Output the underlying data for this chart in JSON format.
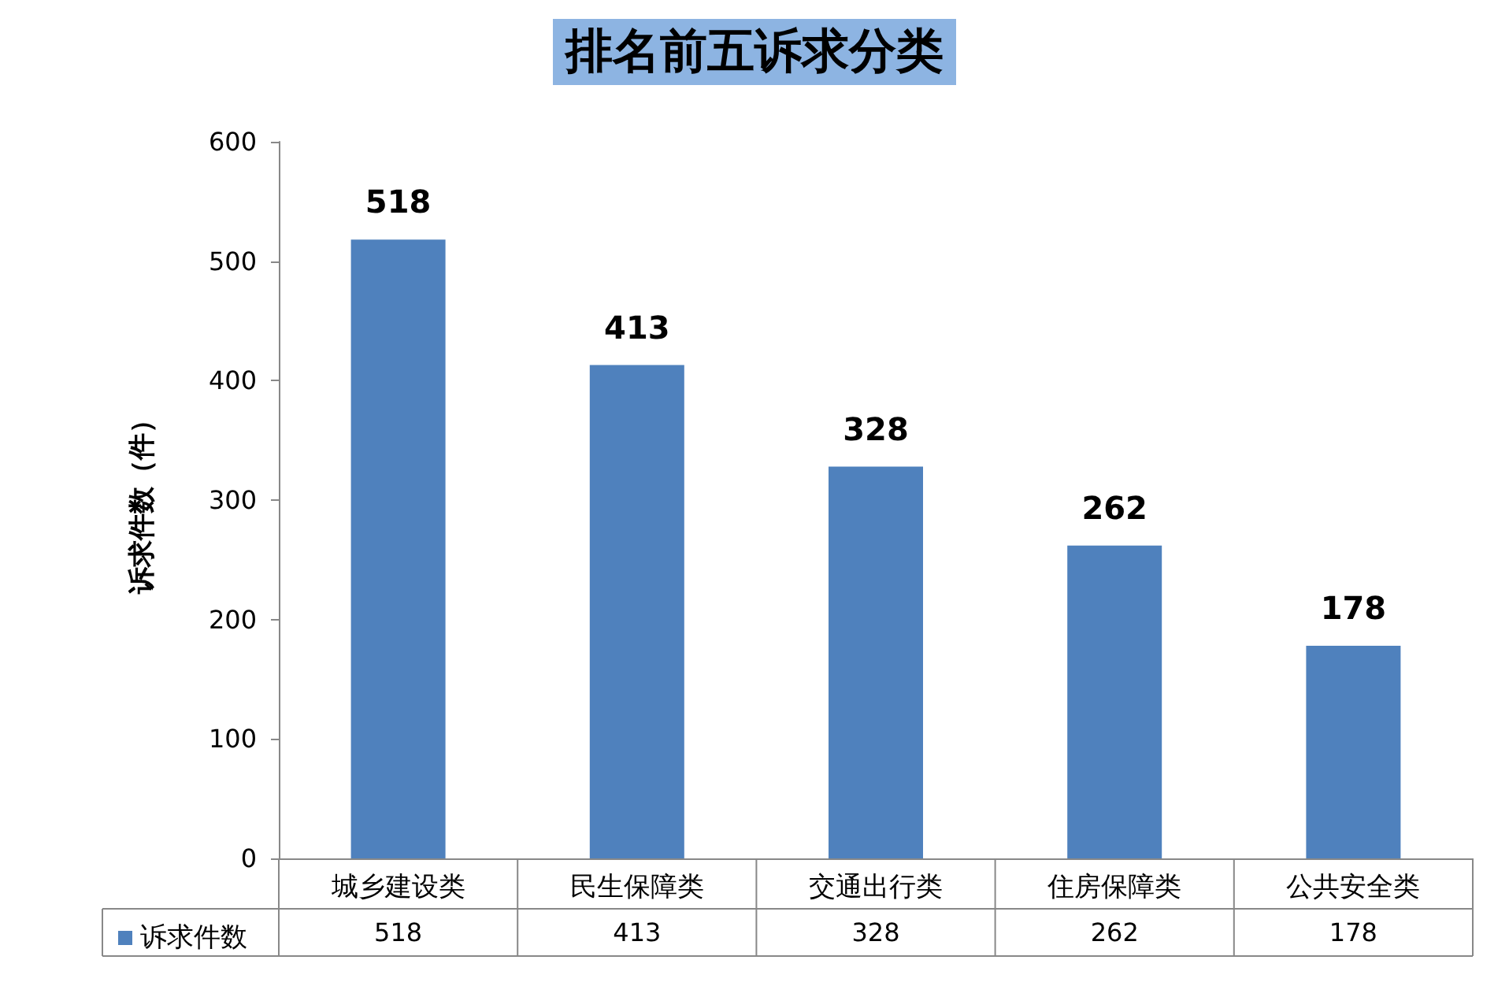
{
  "chart_data": {
    "type": "bar",
    "title": "排名前五诉求分类",
    "ylabel": "诉求件数（件）",
    "categories": [
      "城乡建设类",
      "民生保障类",
      "交通出行类",
      "住房保障类",
      "公共安全类"
    ],
    "series": [
      {
        "name": "诉求件数",
        "color": "#4f81bd",
        "values": [
          518,
          413,
          328,
          262,
          178
        ],
        "value_labels": [
          "518",
          "413",
          "328",
          "262",
          "178"
        ]
      }
    ],
    "ylim": [
      0,
      600
    ],
    "yticks": [
      0,
      100,
      200,
      300,
      400,
      500,
      600
    ],
    "grid": false,
    "legend": "bottom",
    "annotations": [
      "518",
      "413",
      "328",
      "262",
      "178"
    ]
  }
}
